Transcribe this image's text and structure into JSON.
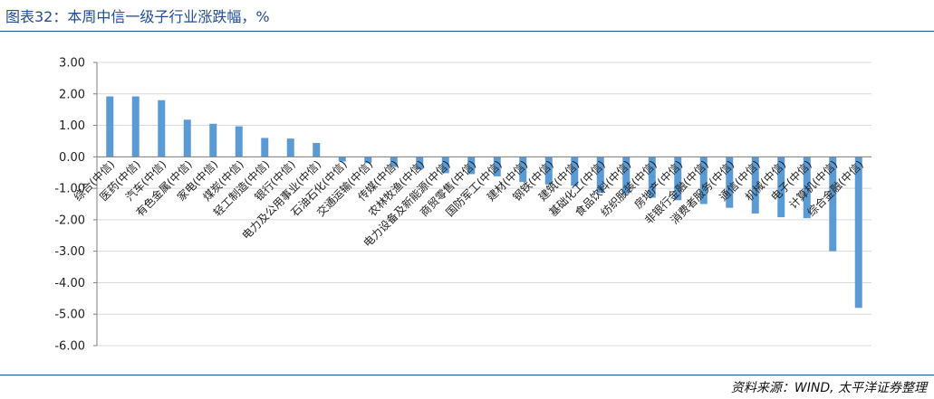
{
  "header": {
    "title": "图表32：本周中信一级子行业涨跌幅，%"
  },
  "footer": {
    "source": "资料来源：WIND, 太平洋证券整理"
  },
  "chart_data": {
    "type": "bar",
    "title": "",
    "xlabel": "",
    "ylabel": "",
    "ylim": [
      -6,
      3
    ],
    "yticks": [
      "3.00",
      "2.00",
      "1.00",
      "0.00",
      "-1.00",
      "-2.00",
      "-3.00",
      "-4.00",
      "-5.00",
      "-6.00"
    ],
    "grid": true,
    "legend": "none",
    "bar_color": "#5b9bd5",
    "categories": [
      "综合(中信)",
      "医药(中信)",
      "汽车(中信)",
      "有色金属(中信)",
      "家电(中信)",
      "煤炭(中信)",
      "轻工制造(中信)",
      "银行(中信)",
      "电力及公用事业(中信)",
      "石油石化(中信)",
      "交通运输(中信)",
      "传媒(中信)",
      "农林牧渔(中信)",
      "电力设备及新能源(中信)",
      "商贸零售(中信)",
      "国防军工(中信)",
      "建材(中信)",
      "钢铁(中信)",
      "建筑(中信)",
      "基础化工(中信)",
      "食品饮料(中信)",
      "纺织服装(中信)",
      "房地产(中信)",
      "非银行金融(中信)",
      "消费者服务(中信)",
      "通信(中信)",
      "机械(中信)",
      "电子(中信)",
      "计算机(中信)",
      "综合金融(中信)"
    ],
    "values": [
      1.92,
      1.92,
      1.8,
      1.18,
      1.05,
      0.97,
      0.6,
      0.58,
      0.44,
      -0.15,
      -0.2,
      -0.32,
      -0.4,
      -0.52,
      -0.55,
      -0.62,
      -0.8,
      -0.88,
      -0.92,
      -1.15,
      -1.18,
      -1.3,
      -1.38,
      -1.5,
      -1.62,
      -1.8,
      -1.92,
      -1.95,
      -3.0,
      -4.8
    ]
  }
}
